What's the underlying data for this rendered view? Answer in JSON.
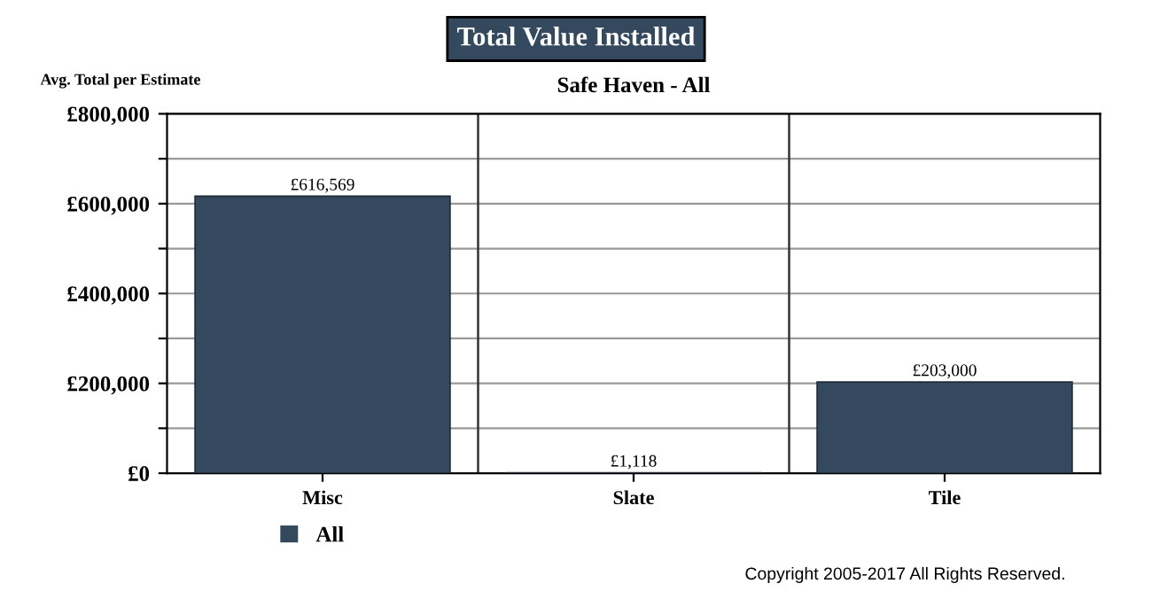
{
  "chart_data": {
    "type": "bar",
    "title": "Total Value Installed",
    "subtitle": "Safe Haven - All",
    "ylabel": "Avg. Total per Estimate",
    "categories": [
      "Misc",
      "Slate",
      "Tile"
    ],
    "series": [
      {
        "name": "All",
        "color": "#34495e",
        "values": [
          616569,
          1118,
          203000
        ],
        "value_labels": [
          "£616,569",
          "£1,118",
          "£203,000"
        ]
      }
    ],
    "ylim": [
      0,
      800000
    ],
    "yticks": [
      {
        "value": 0,
        "label": "£0"
      },
      {
        "value": 100000,
        "label": null
      },
      {
        "value": 200000,
        "label": "£200,000"
      },
      {
        "value": 300000,
        "label": null
      },
      {
        "value": 400000,
        "label": "£400,000"
      },
      {
        "value": 500000,
        "label": null
      },
      {
        "value": 600000,
        "label": "£600,000"
      },
      {
        "value": 700000,
        "label": null
      },
      {
        "value": 800000,
        "label": "£800,000"
      }
    ],
    "grid": "y",
    "legend": "bottom left",
    "annotations": [
      "Copyright 2005-2017 All Rights Reserved."
    ]
  }
}
